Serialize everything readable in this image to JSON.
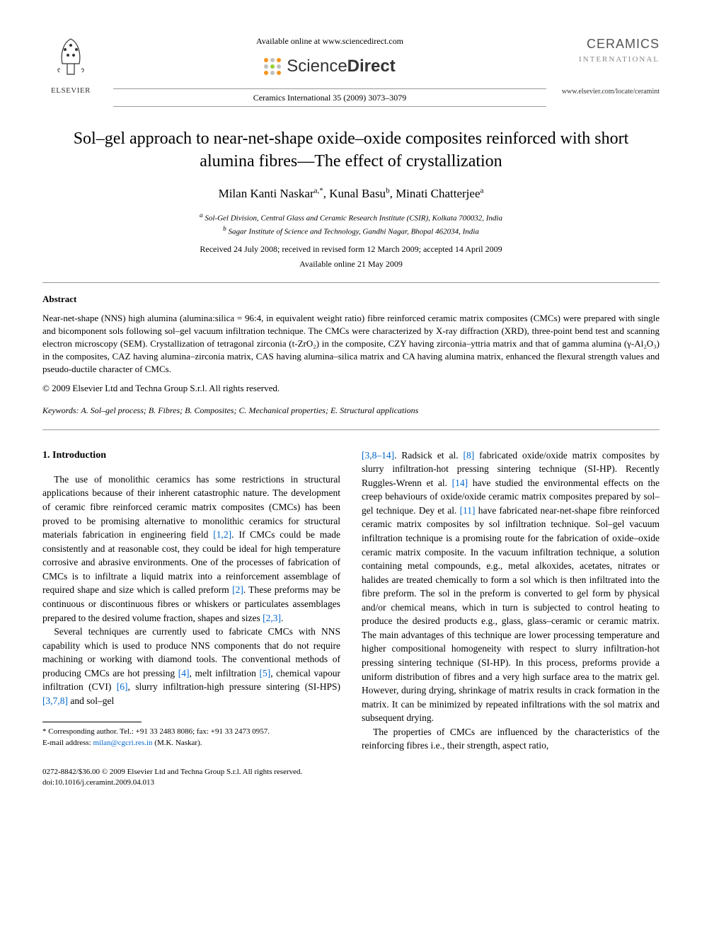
{
  "header": {
    "elsevier": "ELSEVIER",
    "available_online": "Available online at www.sciencedirect.com",
    "sciencedirect_plain": "Science",
    "sciencedirect_bold": "Direct",
    "sd_dot_colors": [
      "#f7941d",
      "#c0c0c0",
      "#f7941d",
      "#c0c0c0",
      "#9acd32",
      "#c0c0c0",
      "#f7941d",
      "#c0c0c0",
      "#f7941d"
    ],
    "citation": "Ceramics International 35 (2009) 3073–3079",
    "journal_name": "CERAMICS",
    "journal_sub": "INTERNATIONAL",
    "journal_url": "www.elsevier.com/locate/ceramint"
  },
  "title": "Sol–gel approach to near-net-shape oxide–oxide composites reinforced with short alumina fibres—The effect of crystallization",
  "authors": [
    {
      "name": "Milan Kanti Naskar",
      "sup": "a,*"
    },
    {
      "name": "Kunal Basu",
      "sup": "b"
    },
    {
      "name": "Minati Chatterjee",
      "sup": "a"
    }
  ],
  "affiliations": [
    {
      "sup": "a",
      "text": "Sol-Gel Division, Central Glass and Ceramic Research Institute (CSIR), Kolkata 700032, India"
    },
    {
      "sup": "b",
      "text": "Sagar Institute of Science and Technology, Gandhi Nagar, Bhopal 462034, India"
    }
  ],
  "dates": {
    "received": "Received 24 July 2008; received in revised form 12 March 2009; accepted 14 April 2009",
    "online": "Available online 21 May 2009"
  },
  "abstract": {
    "heading": "Abstract",
    "text": "Near-net-shape (NNS) high alumina (alumina:silica = 96:4, in equivalent weight ratio) fibre reinforced ceramic matrix composites (CMCs) were prepared with single and bicomponent sols following sol–gel vacuum infiltration technique. The CMCs were characterized by X-ray diffraction (XRD), three-point bend test and scanning electron microscopy (SEM). Crystallization of tetragonal zirconia (t-ZrO₂) in the composite, CZY having zirconia–yttria matrix and that of gamma alumina (γ-Al₂O₃) in the composites, CAZ having alumina–zirconia matrix, CAS having alumina–silica matrix and CA having alumina matrix, enhanced the flexural strength values and pseudo-ductile character of CMCs.",
    "copyright": "© 2009 Elsevier Ltd and Techna Group S.r.l. All rights reserved."
  },
  "keywords": {
    "label": "Keywords:",
    "text": "A. Sol–gel process; B. Fibres; B. Composites; C. Mechanical properties; E. Structural applications"
  },
  "section1_heading": "1. Introduction",
  "para1_a": "The use of monolithic ceramics has some restrictions in structural applications because of their inherent catastrophic nature. The development of ceramic fibre reinforced ceramic matrix composites (CMCs) has been proved to be promising alternative to monolithic ceramics for structural materials fabrication in engineering field ",
  "ref1": "[1,2]",
  "para1_b": ". If CMCs could be made consistently and at reasonable cost, they could be ideal for high temperature corrosive and abrasive environments. One of the processes of fabrication of CMCs is to infiltrate a liquid matrix into a reinforcement assemblage of required shape and size which is called preform ",
  "ref2": "[2]",
  "para1_c": ". These preforms may be continuous or discontinuous fibres or whiskers or particulates assemblages prepared to the desired volume fraction, shapes and sizes ",
  "ref3": "[2,3]",
  "para1_d": ".",
  "para2_a": "Several techniques are currently used to fabricate CMCs with NNS capability which is used to produce NNS components that do not require machining or working with diamond tools. The conventional methods of producing CMCs are hot pressing ",
  "ref4": "[4]",
  "para2_b": ", melt infiltration ",
  "ref5": "[5]",
  "para2_c": ", chemical vapour infiltration (CVI) ",
  "ref6": "[6]",
  "para2_d": ", slurry infiltration-high pressure sintering (SI-HPS) ",
  "ref7": "[3,7,8]",
  "para2_e": " and sol–gel ",
  "ref8": "[3,8–14]",
  "para2_f": ". Radsick et al. ",
  "ref9": "[8]",
  "para2_g": " fabricated oxide/oxide matrix composites by slurry infiltration-hot pressing sintering technique (SI-HP). Recently Ruggles-Wrenn et al. ",
  "ref10": "[14]",
  "para2_h": " have studied the environmental effects on the creep behaviours of oxide/oxide ceramic matrix composites prepared by sol–gel technique. Dey et al. ",
  "ref11": "[11]",
  "para2_i": " have fabricated near-net-shape fibre reinforced ceramic matrix composites by sol infiltration technique. Sol–gel vacuum infiltration technique is a promising route for the fabrication of oxide–oxide ceramic matrix composite. In the vacuum infiltration technique, a solution containing metal compounds, e.g., metal alkoxides, acetates, nitrates or halides are treated chemically to form a sol which is then infiltrated into the fibre preform. The sol in the preform is converted to gel form by physical and/or chemical means, which in turn is subjected to control heating to produce the desired products e.g., glass, glass–ceramic or ceramic matrix. The main advantages of this technique are lower processing temperature and higher compositional homogeneity with respect to slurry infiltration-hot pressing sintering technique (SI-HP). In this process, preforms provide a uniform distribution of fibres and a very high surface area to the matrix gel. However, during drying, shrinkage of matrix results in crack formation in the matrix. It can be minimized by repeated infiltrations with the sol matrix and subsequent drying.",
  "para3": "The properties of CMCs are influenced by the characteristics of the reinforcing fibres i.e., their strength, aspect ratio,",
  "footnote": {
    "corresponding": "* Corresponding author. Tel.: +91 33 2483 8086; fax: +91 33 2473 0957.",
    "email_label": "E-mail address:",
    "email": "milan@cgcri.res.in",
    "email_tail": "(M.K. Naskar)."
  },
  "footer": {
    "line1": "0272-8842/$36.00 © 2009 Elsevier Ltd and Techna Group S.r.l. All rights reserved.",
    "line2": "doi:10.1016/j.ceramint.2009.04.013"
  }
}
